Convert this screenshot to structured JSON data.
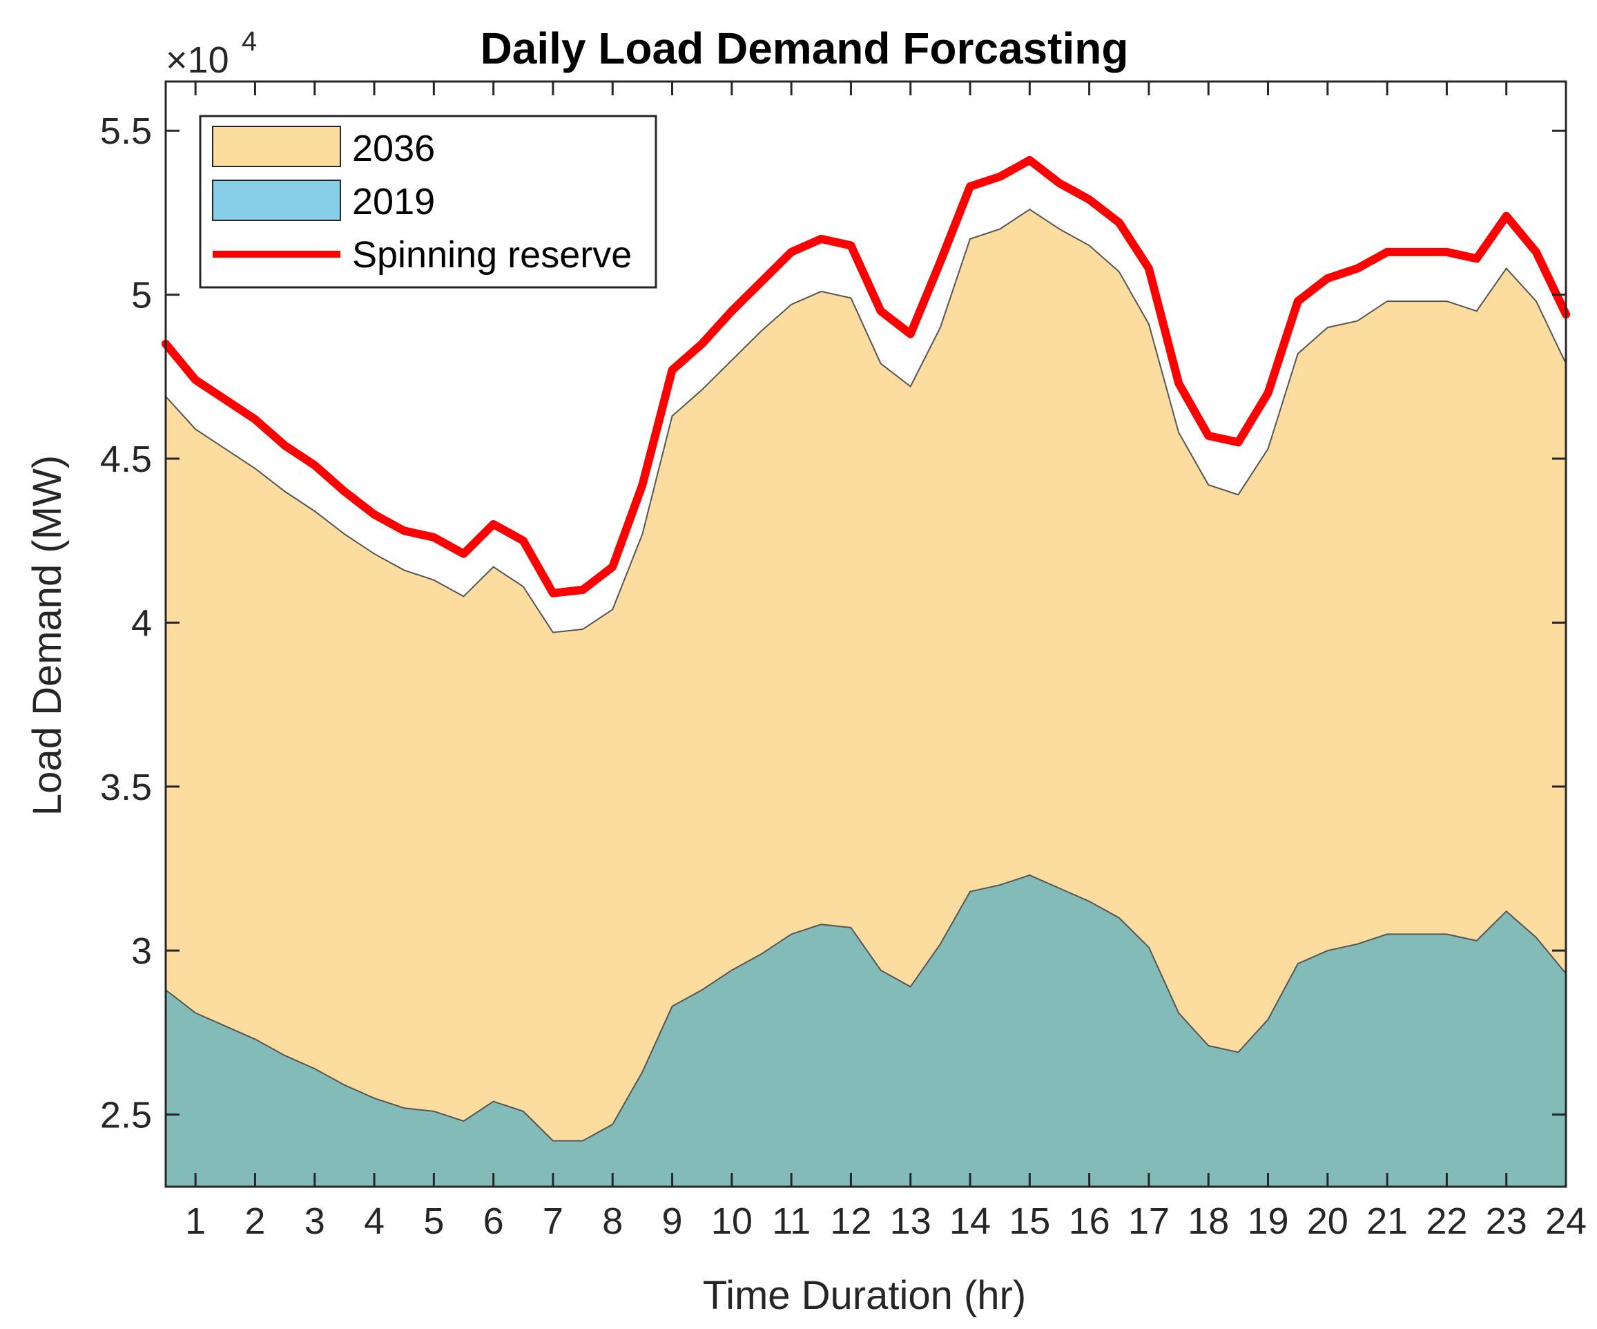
{
  "chart_data": {
    "type": "area",
    "title": "Daily Load Demand Forcasting",
    "xlabel": "Time Duration (hr)",
    "ylabel": "Load Demand (MW)",
    "y_exponent_label": "×10",
    "y_exponent_power": "4",
    "y_scale": 10000,
    "xlim": [
      0.5,
      24
    ],
    "ylim": [
      22800,
      56500
    ],
    "x_ticks": [
      {
        "value": 1,
        "label": "1"
      },
      {
        "value": 2,
        "label": "2"
      },
      {
        "value": 3,
        "label": "3"
      },
      {
        "value": 4,
        "label": "4"
      },
      {
        "value": 5,
        "label": "5"
      },
      {
        "value": 6,
        "label": "6"
      },
      {
        "value": 7,
        "label": "7"
      },
      {
        "value": 8,
        "label": "8"
      },
      {
        "value": 9,
        "label": "9"
      },
      {
        "value": 10,
        "label": "10"
      },
      {
        "value": 11,
        "label": "11"
      },
      {
        "value": 12,
        "label": "12"
      },
      {
        "value": 13,
        "label": "13"
      },
      {
        "value": 14,
        "label": "14"
      },
      {
        "value": 15,
        "label": "15"
      },
      {
        "value": 16,
        "label": "16"
      },
      {
        "value": 17,
        "label": "17"
      },
      {
        "value": 18,
        "label": "18"
      },
      {
        "value": 19,
        "label": "19"
      },
      {
        "value": 20,
        "label": "20"
      },
      {
        "value": 21,
        "label": "21"
      },
      {
        "value": 22,
        "label": "22"
      },
      {
        "value": 23,
        "label": "23"
      },
      {
        "value": 24,
        "label": "24"
      }
    ],
    "y_ticks": [
      {
        "value": 25000,
        "label": "2.5"
      },
      {
        "value": 30000,
        "label": "3"
      },
      {
        "value": 35000,
        "label": "3.5"
      },
      {
        "value": 40000,
        "label": "4"
      },
      {
        "value": 45000,
        "label": "4.5"
      },
      {
        "value": 50000,
        "label": "5"
      },
      {
        "value": 55000,
        "label": "5.5"
      }
    ],
    "legend_position": "top-left",
    "x": [
      0.5,
      1,
      1.5,
      2,
      2.5,
      3,
      3.5,
      4,
      4.5,
      5,
      5.5,
      6,
      6.5,
      7,
      7.5,
      8,
      8.5,
      9,
      9.5,
      10,
      10.5,
      11,
      11.5,
      12,
      12.5,
      13,
      13.5,
      14,
      14.5,
      15,
      15.5,
      16,
      16.5,
      17,
      17.5,
      18,
      18.5,
      19,
      19.5,
      20,
      20.5,
      21,
      21.5,
      22,
      22.5,
      23,
      23.5,
      24
    ],
    "series": [
      {
        "name": "2036",
        "kind": "area",
        "color": "#fcdc9f",
        "values": [
          46900,
          45900,
          45300,
          44700,
          44000,
          43400,
          42700,
          42100,
          41600,
          41300,
          40800,
          41700,
          41100,
          39700,
          39800,
          40400,
          42700,
          46300,
          47100,
          48000,
          48900,
          49700,
          50100,
          49900,
          47900,
          47200,
          49000,
          51700,
          52000,
          52600,
          52000,
          51500,
          50700,
          49100,
          45800,
          44200,
          43900,
          45300,
          48200,
          49000,
          49200,
          49800,
          49800,
          49800,
          49500,
          50800,
          49800,
          47900
        ]
      },
      {
        "name": "2019",
        "kind": "area",
        "color": "#82bbb8",
        "legend_color": "#86cfe6",
        "values": [
          28800,
          28100,
          27700,
          27300,
          26800,
          26400,
          25900,
          25500,
          25200,
          25100,
          24800,
          25400,
          25100,
          24200,
          24200,
          24700,
          26300,
          28300,
          28800,
          29400,
          29900,
          30500,
          30800,
          30700,
          29400,
          28900,
          30200,
          31800,
          32000,
          32300,
          31900,
          31500,
          31000,
          30100,
          28100,
          27100,
          26900,
          27900,
          29600,
          30000,
          30200,
          30500,
          30500,
          30500,
          30300,
          31200,
          30400,
          29300
        ]
      },
      {
        "name": "Spinning reserve",
        "kind": "line",
        "color": "#ff0000",
        "values": [
          48500,
          47400,
          46800,
          46200,
          45400,
          44800,
          44000,
          43300,
          42800,
          42600,
          42100,
          43000,
          42500,
          40900,
          41000,
          41700,
          44200,
          47700,
          48500,
          49500,
          50400,
          51300,
          51700,
          51500,
          49500,
          48800,
          51000,
          53300,
          53600,
          54100,
          53400,
          52900,
          52200,
          50800,
          47300,
          45700,
          45500,
          47000,
          49800,
          50500,
          50800,
          51300,
          51300,
          51300,
          51100,
          52400,
          51300,
          49400
        ]
      }
    ]
  }
}
